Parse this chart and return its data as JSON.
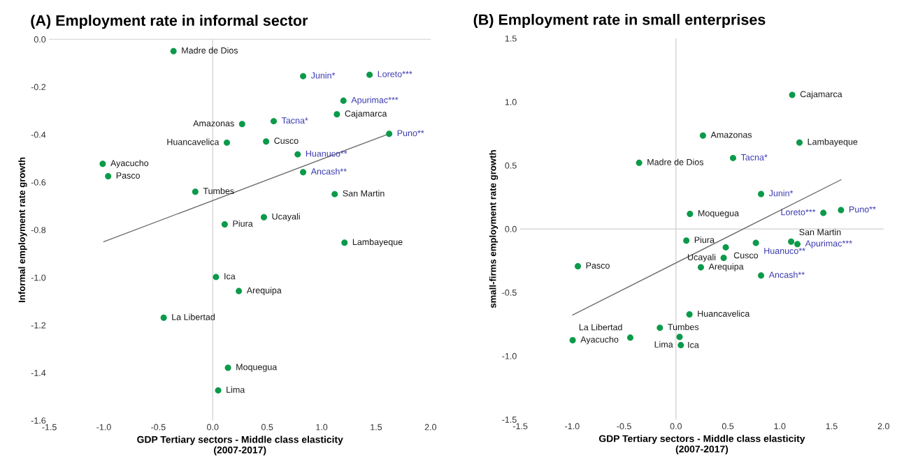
{
  "chart_data": [
    {
      "type": "scatter",
      "title": "(A) Employment rate in informal sector",
      "xlabel": "GDP Tertiary sectors - Middle class elasticity\n(2007-2017)",
      "ylabel": "Informal employment rate growth",
      "xlim": [
        -1.5,
        2.0
      ],
      "ylim": [
        -1.6,
        0.0
      ],
      "xticks": [
        -1.5,
        {
          "value": -1,
          "label": "-1.0"
        },
        -0.5,
        {
          "value": 0,
          "label": "0.0"
        },
        0.5,
        {
          "value": 1,
          "label": "1.0"
        },
        1.5,
        {
          "value": 2,
          "label": "2.0"
        }
      ],
      "yticks": [
        -1.6,
        -1.4,
        -1.2,
        {
          "value": -1,
          "label": "-1.0"
        },
        -0.8,
        -0.6,
        -0.4,
        -0.2,
        {
          "value": 0,
          "label": "0.0"
        }
      ],
      "grid": false,
      "legend": false,
      "ref_lines": [
        {
          "axis": "x",
          "value": 0,
          "color": "#d0d0d0"
        }
      ],
      "annotations": [
        {
          "text": "Junin*",
          "x": 0.83,
          "y": -0.155
        },
        {
          "text": "Loreto***",
          "x": 1.44,
          "y": -0.149
        },
        {
          "text": "Apurimac***",
          "x": 1.2,
          "y": -0.258
        },
        {
          "text": "Tacna*",
          "x": 0.56,
          "y": -0.344
        },
        {
          "text": "Puno**",
          "x": 1.62,
          "y": -0.397
        },
        {
          "text": "Huanuco**",
          "x": 0.78,
          "y": -0.483
        },
        {
          "text": "Ancash**",
          "x": 0.83,
          "y": -0.558
        }
      ],
      "series": [
        {
          "color": "#0b9a4a",
          "marker": "circle",
          "x": [
            -0.36,
            1.14,
            0.27,
            0.13,
            0.49,
            -1.01,
            -0.96,
            -0.16,
            1.12,
            0.47,
            0.11,
            1.21,
            0.03,
            0.24,
            -0.45,
            0.14,
            0.05
          ],
          "values": [
            -0.05,
            -0.315,
            -0.356,
            -0.434,
            -0.429,
            -0.523,
            -0.575,
            -0.64,
            -0.65,
            -0.747,
            -0.777,
            -0.854,
            -0.998,
            -1.057,
            -1.169,
            -1.379,
            -1.474
          ],
          "value_labels": [
            "Madre de Dios",
            "Cajamarca",
            "Amazonas",
            "Huancavelica",
            "Cusco",
            "Ayacucho",
            "Pasco",
            "Tumbes",
            "San Martin",
            "Ucayali",
            "Piura",
            "Lambayeque",
            "Ica",
            "Arequipa",
            "La Libertad",
            "Moquegua",
            "Lima"
          ]
        },
        {
          "color": "#0b9a4a",
          "marker": "circle",
          "x": [
            0.83,
            1.44,
            1.2,
            0.56,
            1.62,
            0.78,
            0.83
          ],
          "values": [
            -0.155,
            -0.149,
            -0.258,
            -0.344,
            -0.397,
            -0.483,
            -0.558
          ]
        },
        {
          "type": "line",
          "color": "#6b6b6b",
          "x": [
            -1.0,
            1.6
          ],
          "values": [
            -0.85,
            -0.4
          ]
        }
      ]
    },
    {
      "type": "scatter",
      "title": "(B) Employment rate in small enterprises",
      "xlabel": "GDP Tertiary sectors - Middle class elasticity\n(2007-2017)",
      "ylabel": "small-firms employment rate growth",
      "xlim": [
        -1.5,
        2.0
      ],
      "ylim": [
        -1.5,
        1.5
      ],
      "xticks": [
        -1.5,
        {
          "value": -1,
          "label": "-1.0"
        },
        -0.5,
        {
          "value": 0,
          "label": "0.0"
        },
        0.5,
        {
          "value": 1,
          "label": "1.0"
        },
        1.5,
        {
          "value": 2,
          "label": "2.0"
        }
      ],
      "yticks": [
        -1.5,
        {
          "value": -1,
          "label": "-1.0"
        },
        -0.5,
        {
          "value": 0,
          "label": "0.0"
        },
        0.5,
        {
          "value": 1,
          "label": "1.0"
        },
        1.5
      ],
      "grid": false,
      "legend": false,
      "ref_lines": [
        {
          "axis": "x",
          "value": 0,
          "color": "#d0d0d0"
        },
        {
          "axis": "y",
          "value": 0,
          "color": "#d0d0d0"
        }
      ],
      "annotations": [
        {
          "text": "Tacna*",
          "x": 0.55,
          "y": 0.558
        },
        {
          "text": "Junin*",
          "x": 0.82,
          "y": 0.275
        },
        {
          "text": "Loreto***",
          "x": 1.42,
          "y": 0.126
        },
        {
          "text": "Puno**",
          "x": 1.59,
          "y": 0.148
        },
        {
          "text": "Huanuco**",
          "x": 0.77,
          "y": -0.11
        },
        {
          "text": "Apurimac***",
          "x": 1.17,
          "y": -0.12
        },
        {
          "text": "Ancash**",
          "x": 0.82,
          "y": -0.367
        }
      ],
      "series": [
        {
          "color": "#0b9a4a",
          "marker": "circle",
          "x": [
            1.12,
            0.26,
            1.19,
            -0.355,
            0.135,
            0.1,
            0.48,
            1.11,
            0.46,
            -0.945,
            0.24,
            0.13,
            -0.155,
            0.035,
            0.047,
            -0.995,
            -0.44
          ],
          "values": [
            1.055,
            0.735,
            0.68,
            0.52,
            0.118,
            -0.092,
            -0.145,
            -0.1,
            -0.228,
            -0.294,
            -0.302,
            -0.673,
            -0.778,
            -0.85,
            -0.915,
            -0.876,
            -0.856
          ],
          "value_labels": [
            "Cajamarca",
            "Amazonas",
            "Lambayeque",
            "Madre de Dios",
            "Moquegua",
            "Piura",
            "Cusco",
            "San Martin",
            "Ucayali",
            "Pasco",
            "Arequipa",
            "Huancavelica",
            "Tumbes",
            "Ica",
            "Lima",
            "Ayacucho",
            "La Libertad"
          ]
        },
        {
          "color": "#0b9a4a",
          "marker": "circle",
          "x": [
            0.55,
            0.82,
            1.42,
            1.59,
            0.77,
            1.17,
            0.82
          ],
          "values": [
            0.558,
            0.275,
            0.126,
            0.148,
            -0.11,
            -0.12,
            -0.367
          ]
        },
        {
          "type": "line",
          "color": "#6b6b6b",
          "x": [
            -0.995,
            1.59
          ],
          "values": [
            -0.677,
            0.387
          ]
        }
      ]
    }
  ]
}
